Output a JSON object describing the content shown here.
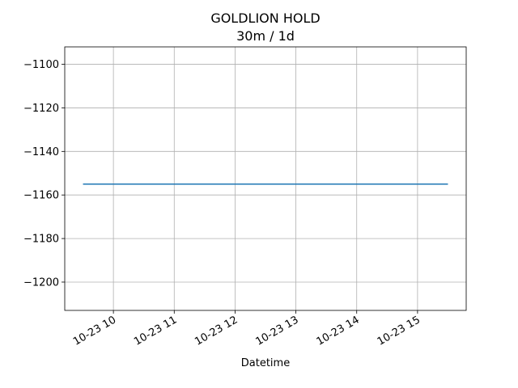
{
  "chart_data": {
    "type": "line",
    "title": "GOLDLION HOLD",
    "subtitle": "30m / 1d",
    "xlabel": "Datetime",
    "ylabel": "",
    "grid": true,
    "legend": "none",
    "xlim": [
      "2023-10-23 09:30",
      "2023-10-23 15:30"
    ],
    "ylim": [
      -1213,
      -1092
    ],
    "x_ticks": [
      {
        "value": "2023-10-23 10:00",
        "label": "10-23 10"
      },
      {
        "value": "2023-10-23 11:00",
        "label": "10-23 11"
      },
      {
        "value": "2023-10-23 12:00",
        "label": "10-23 12"
      },
      {
        "value": "2023-10-23 13:00",
        "label": "10-23 13"
      },
      {
        "value": "2023-10-23 14:00",
        "label": "10-23 14"
      },
      {
        "value": "2023-10-23 15:00",
        "label": "10-23 15"
      }
    ],
    "y_ticks": [
      -1100,
      -1120,
      -1140,
      -1160,
      -1180,
      -1200
    ],
    "y_tick_labels": [
      "−1100",
      "−1120",
      "−1140",
      "−1160",
      "−1180",
      "−1200"
    ],
    "series": [
      {
        "color": "#1f77b4",
        "x": [
          "2023-10-23 09:30",
          "2023-10-23 10:00",
          "2023-10-23 10:30",
          "2023-10-23 11:00",
          "2023-10-23 11:30",
          "2023-10-23 12:00",
          "2023-10-23 12:30",
          "2023-10-23 13:00",
          "2023-10-23 13:30",
          "2023-10-23 14:00",
          "2023-10-23 14:30",
          "2023-10-23 15:00",
          "2023-10-23 15:30"
        ],
        "y": [
          -1155,
          -1155,
          -1155,
          -1155,
          -1155,
          -1155,
          -1155,
          -1155,
          -1155,
          -1155,
          -1155,
          -1155,
          -1155
        ]
      }
    ]
  }
}
